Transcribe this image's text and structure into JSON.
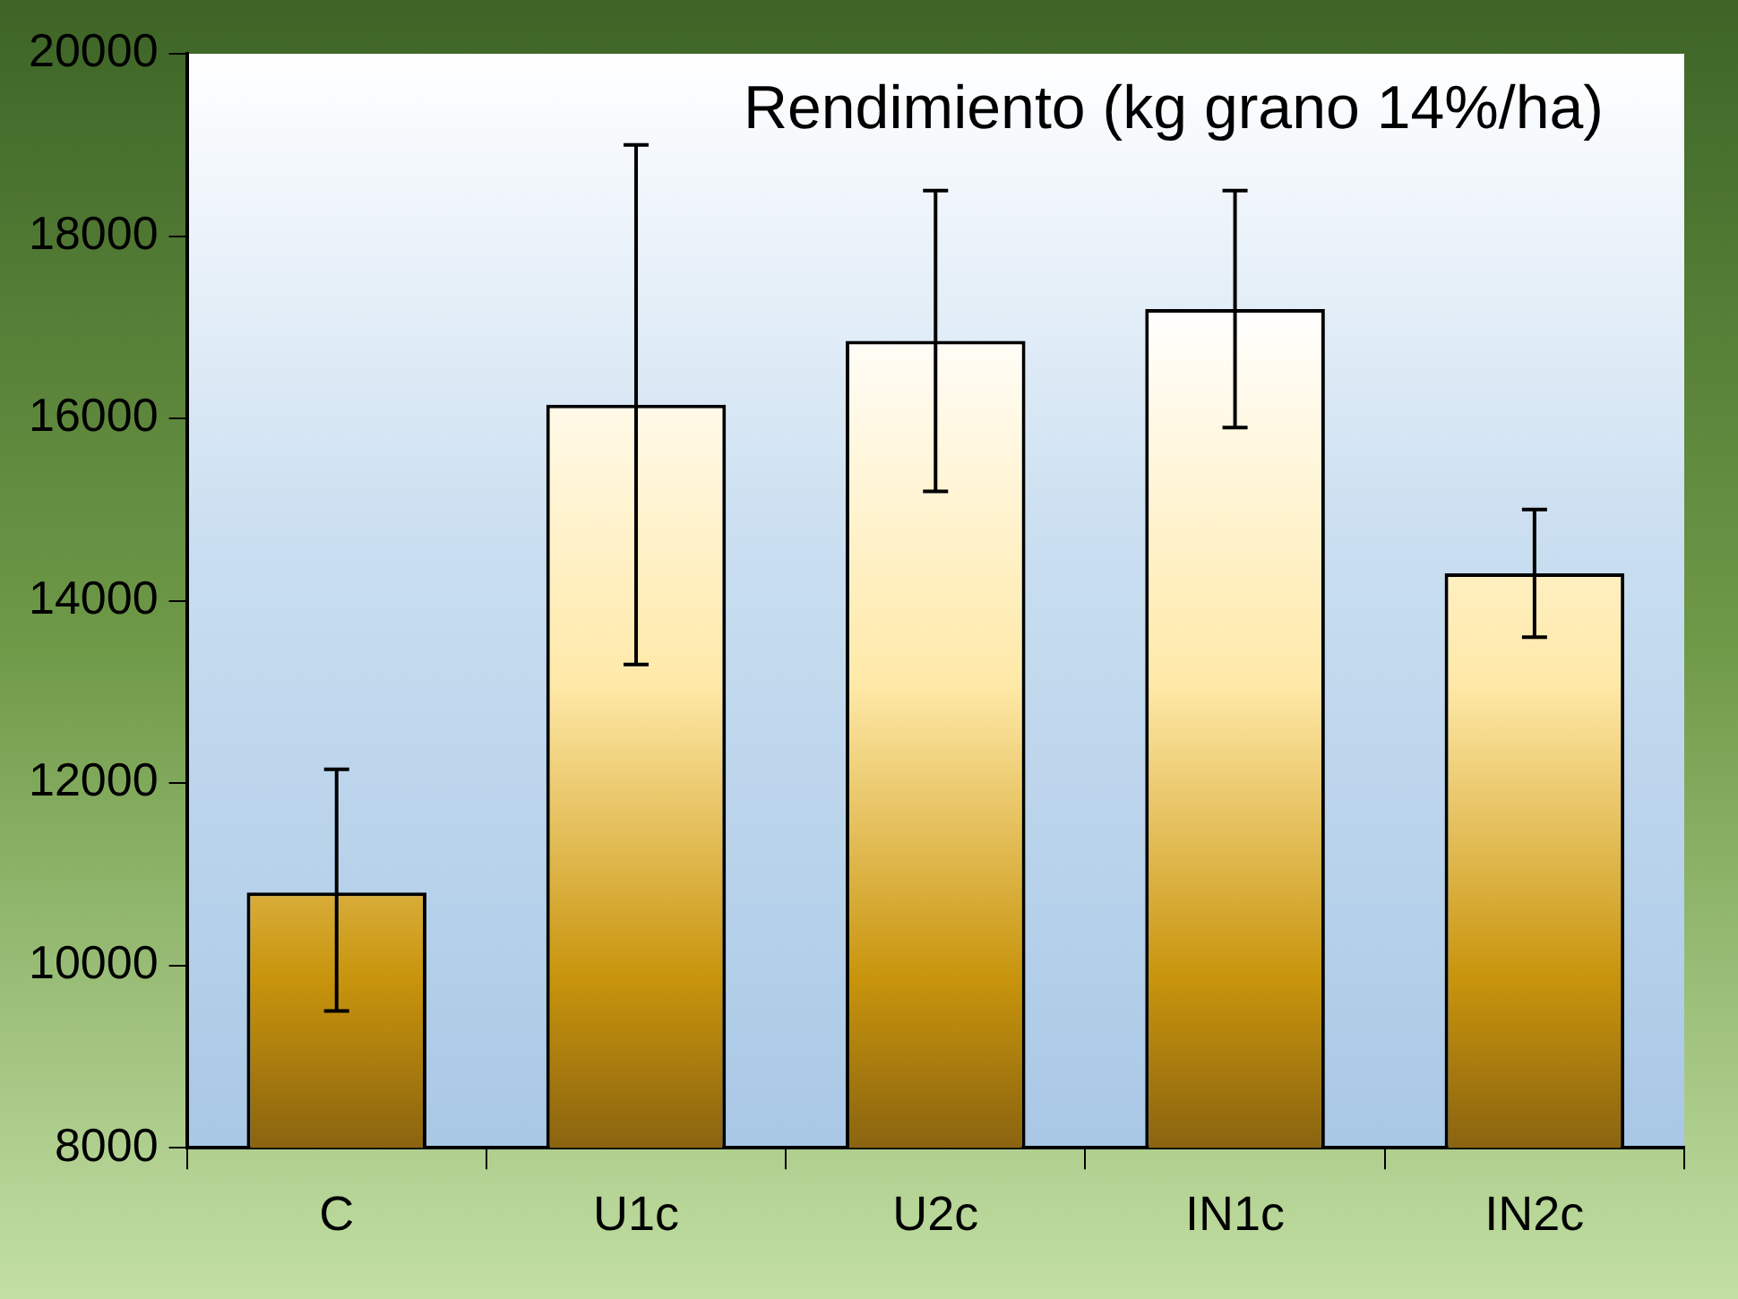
{
  "chart_data": {
    "type": "bar",
    "title": "Rendimiento (kg grano 14%/ha)",
    "categories": [
      "C",
      "U1c",
      "U2c",
      "IN1c",
      "IN2c"
    ],
    "values": [
      10800,
      16150,
      16850,
      17200,
      14300
    ],
    "errors": [
      [
        9500,
        12150
      ],
      [
        13300,
        19000
      ],
      [
        15200,
        18500
      ],
      [
        15900,
        18500
      ],
      [
        13600,
        15000
      ]
    ],
    "color": "#c8940c",
    "ylim": [
      8000,
      20000
    ],
    "yticks": [
      8000,
      10000,
      12000,
      14000,
      16000,
      18000,
      20000
    ],
    "legend": false
  }
}
